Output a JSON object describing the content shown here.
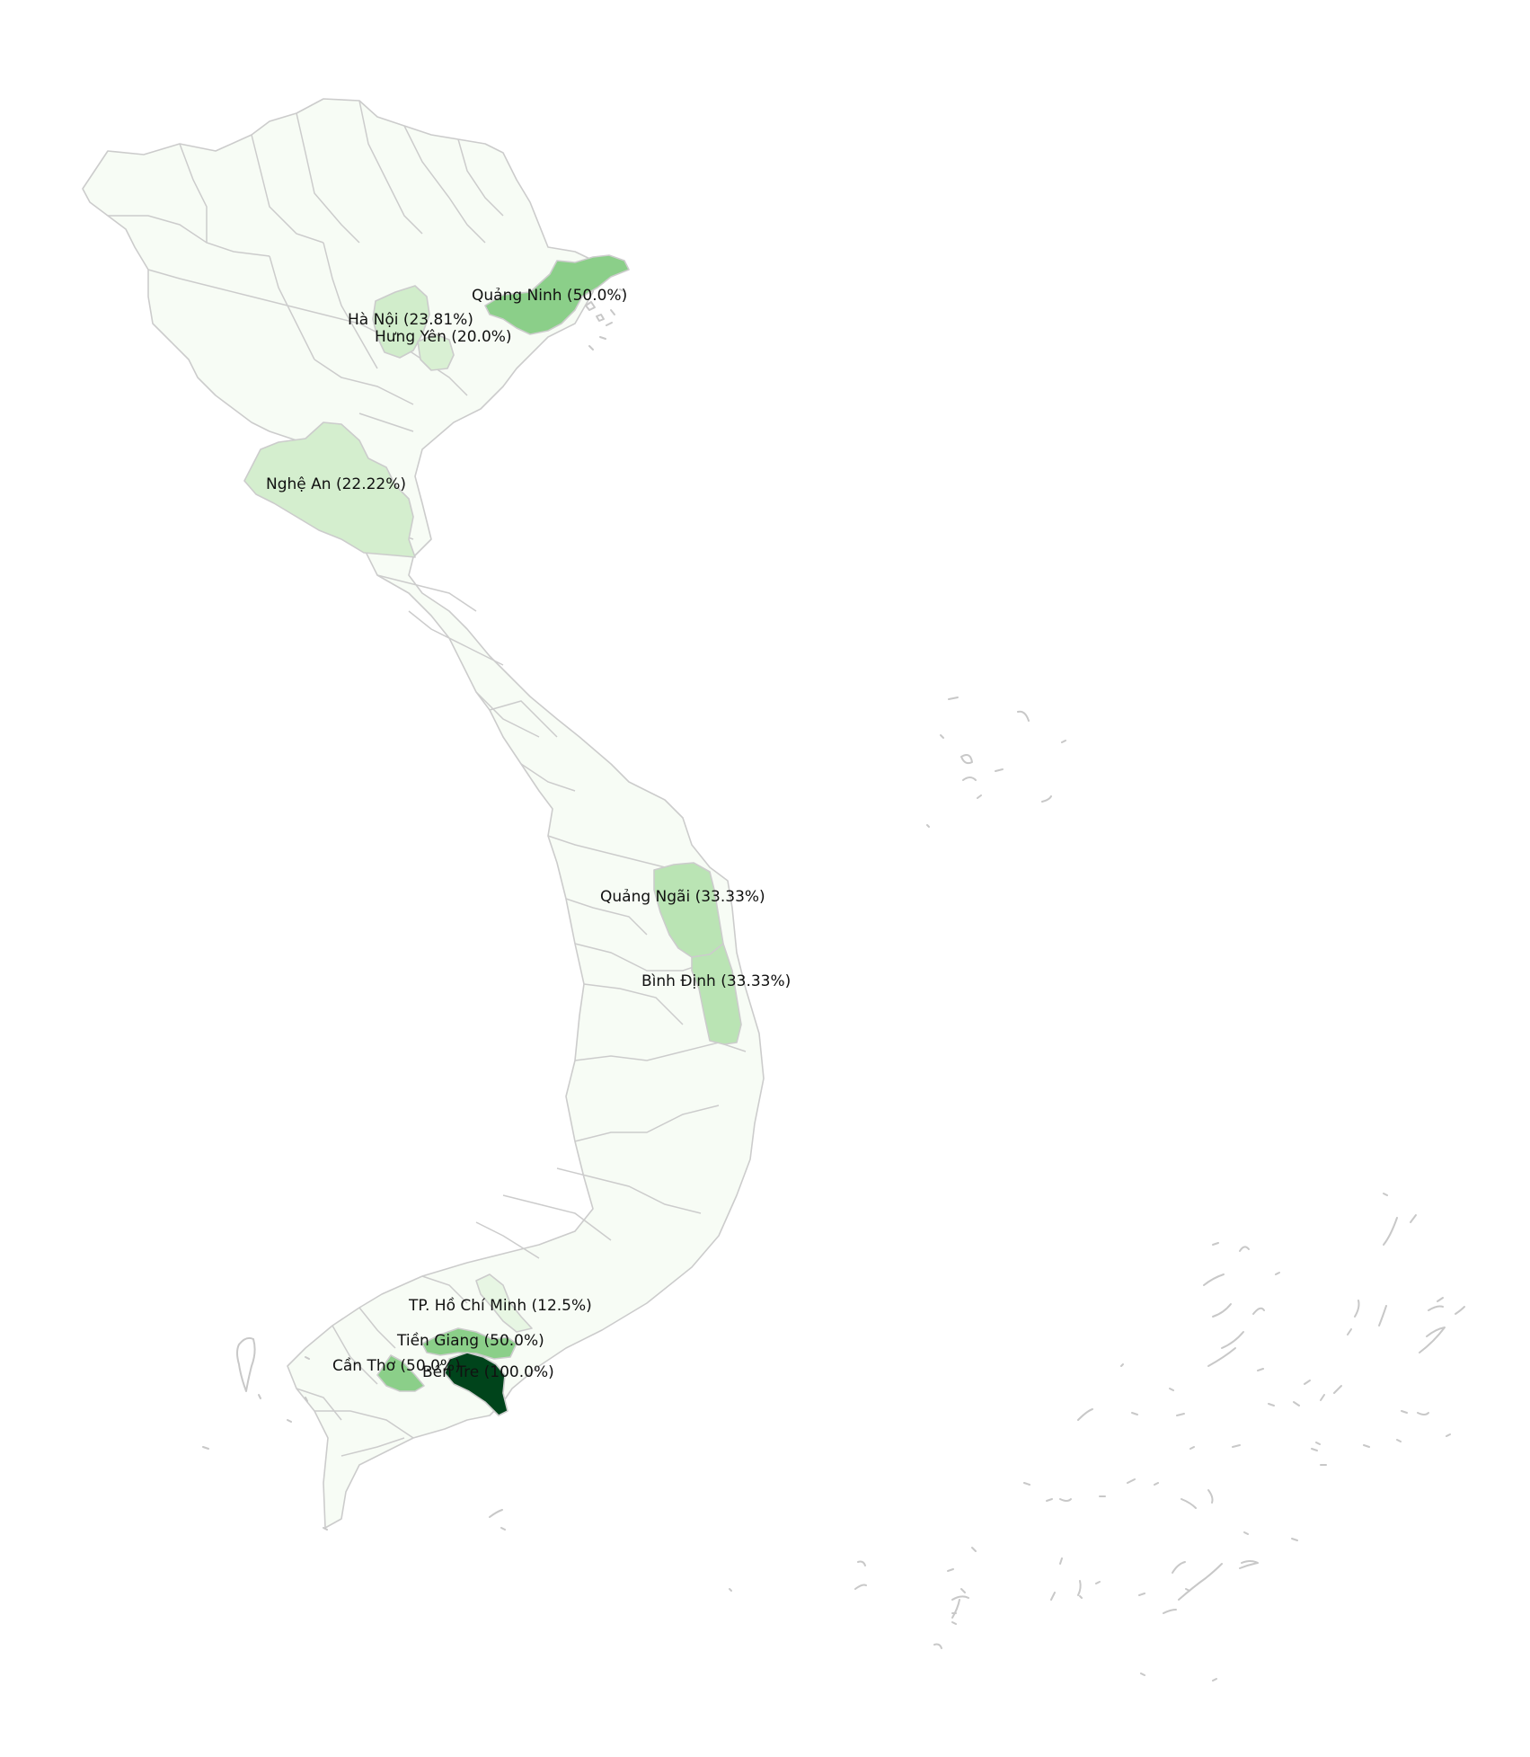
{
  "map": {
    "colors": {
      "base": "#f7fcf5",
      "border": "#cccccc",
      "scale": [
        "#f7fcf5",
        "#e5f5e0",
        "#c7e9c0",
        "#a1d99b",
        "#74c476",
        "#41ab5d",
        "#238b45",
        "#00441b"
      ]
    },
    "provinces": [
      {
        "name": "Quảng Ninh",
        "value": 50.0,
        "label": "Quảng Ninh (50.0%)"
      },
      {
        "name": "Hà Nội",
        "value": 23.81,
        "label": "Hà Nội (23.81%)"
      },
      {
        "name": "Hưng Yên",
        "value": 20.0,
        "label": "Hưng Yên (20.0%)"
      },
      {
        "name": "Nghệ An",
        "value": 22.22,
        "label": "Nghệ An (22.22%)"
      },
      {
        "name": "Quảng Ngãi",
        "value": 33.33,
        "label": "Quảng Ngãi (33.33%)"
      },
      {
        "name": "Bình Định",
        "value": 33.33,
        "label": "Bình Định (33.33%)"
      },
      {
        "name": "TP. Hồ Chí Minh",
        "value": 12.5,
        "label": "TP. Hồ Chí Minh (12.5%)"
      },
      {
        "name": "Tiền Giang",
        "value": 50.0,
        "label": "Tiền Giang (50.0%)"
      },
      {
        "name": "Cần Thơ",
        "value": 50.0,
        "label": "Cần Thơ (50.0%)"
      },
      {
        "name": "Bến Tre",
        "value": 100.0,
        "label": "Bến Tre (100.0%)"
      }
    ]
  }
}
